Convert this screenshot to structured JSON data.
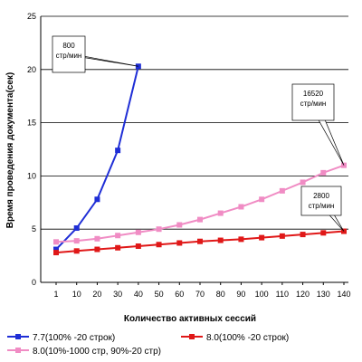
{
  "chart_data": {
    "type": "line",
    "xlabel": "Количество активных сессий",
    "ylabel": "Время проведения документа(сек)",
    "ylim": [
      0,
      25
    ],
    "yticks": [
      0,
      5,
      10,
      15,
      20,
      25
    ],
    "categories": [
      "1",
      "10",
      "20",
      "30",
      "40",
      "50",
      "60",
      "70",
      "80",
      "90",
      "100",
      "110",
      "120",
      "130",
      "140"
    ],
    "grid": "horizontal",
    "legend_position": "bottom",
    "series": [
      {
        "name": "7.7(100% -20 строк)",
        "color": "#1f2ed6",
        "marker": "square",
        "values": [
          3.1,
          5.1,
          7.8,
          12.4,
          20.3,
          null,
          null,
          null,
          null,
          null,
          null,
          null,
          null,
          null,
          null
        ]
      },
      {
        "name": "8.0(100% -20 строк)",
        "color": "#e01818",
        "marker": "square",
        "values": [
          2.8,
          2.95,
          3.1,
          3.25,
          3.4,
          3.55,
          3.7,
          3.85,
          3.95,
          4.05,
          4.2,
          4.35,
          4.5,
          4.65,
          4.8
        ]
      },
      {
        "name": "8.0(10%-1000 стр, 90%-20 стр)",
        "color": "#f08cc4",
        "marker": "square",
        "values": [
          3.8,
          3.9,
          4.1,
          4.4,
          4.7,
          5.0,
          5.4,
          5.9,
          6.5,
          7.1,
          7.8,
          8.6,
          9.4,
          10.3,
          11.0
        ]
      }
    ],
    "annotations": [
      {
        "lines": [
          "800",
          "стр/мин"
        ],
        "series": 0,
        "index": 4
      },
      {
        "lines": [
          "16520",
          "стр/мин"
        ],
        "series": 2,
        "index": 14
      },
      {
        "lines": [
          "2800",
          "стр/мин"
        ],
        "series": 1,
        "index": 14
      }
    ]
  }
}
